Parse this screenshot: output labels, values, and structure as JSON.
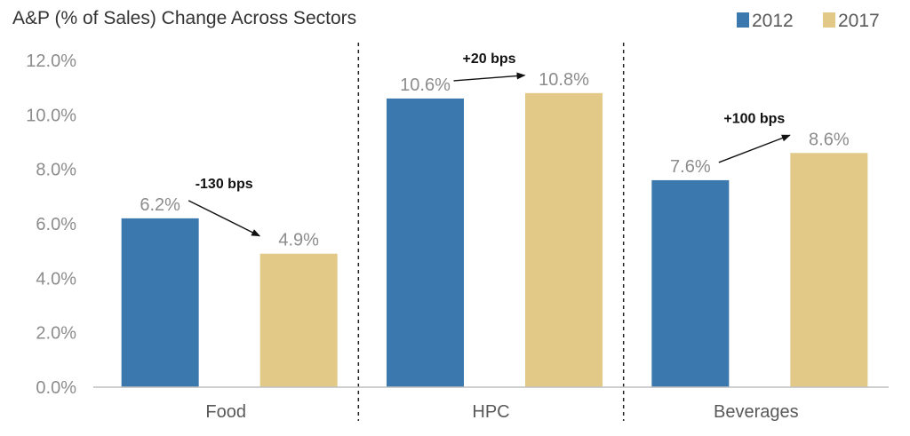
{
  "chart_data": {
    "type": "bar",
    "title": "A&P (% of Sales) Change Across Sectors",
    "categories": [
      "Food",
      "HPC",
      "Beverages"
    ],
    "series": [
      {
        "name": "2012",
        "values": [
          6.2,
          10.6,
          7.6
        ],
        "labels": [
          "6.2%",
          "10.6%",
          "7.6%"
        ],
        "color": "#3a78ad"
      },
      {
        "name": "2017",
        "values": [
          4.9,
          10.8,
          8.6
        ],
        "labels": [
          "4.9%",
          "10.8%",
          "8.6%"
        ],
        "color": "#e2c987"
      }
    ],
    "ylim": [
      0,
      12
    ],
    "yticks": [
      0,
      2,
      4,
      6,
      8,
      10,
      12
    ],
    "ytick_labels": [
      "0.0%",
      "2.0%",
      "4.0%",
      "6.0%",
      "8.0%",
      "10.0%",
      "12.0%"
    ],
    "xlabel": "",
    "ylabel": "",
    "grid": false,
    "legend_position": "top-right",
    "category_separators": "dashed",
    "annotations": [
      "-130 bps",
      "+20 bps",
      "+100 bps"
    ]
  }
}
